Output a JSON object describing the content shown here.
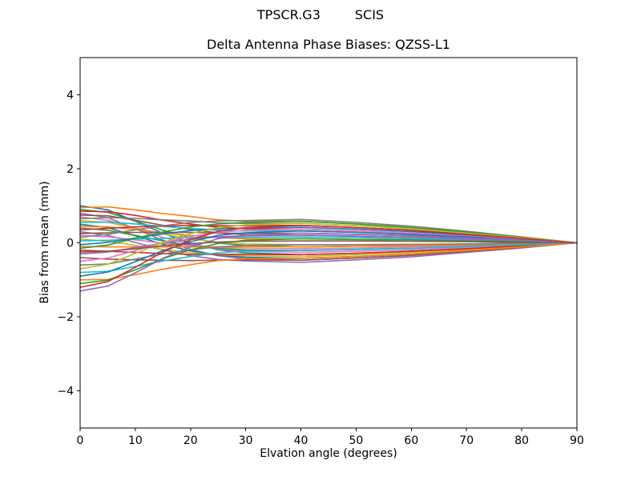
{
  "colors": {
    "background": "#ffffff",
    "text": "#000000",
    "axis": "#000000"
  },
  "chart_data": {
    "type": "line",
    "suptitle_left": "TPSCR.G3",
    "suptitle_right": "SCIS",
    "title": "Delta Antenna Phase Biases: QZSS-L1",
    "xlabel": "Elvation angle (degrees)",
    "ylabel": "Bias from mean (mm)",
    "xlim": [
      0,
      90
    ],
    "ylim": [
      -5,
      5
    ],
    "xticks": [
      0,
      10,
      20,
      30,
      40,
      50,
      60,
      70,
      80,
      90
    ],
    "yticks": [
      -4,
      -2,
      0,
      2,
      4
    ],
    "grid": false,
    "legend": false,
    "palette": [
      "#1f77b4",
      "#ff7f0e",
      "#2ca02c",
      "#d62728",
      "#9467bd",
      "#8c564b",
      "#e377c2",
      "#7f7f7f",
      "#bcbd22",
      "#17becf"
    ],
    "x": [
      0,
      5,
      10,
      15,
      20,
      25,
      30,
      40,
      50,
      60,
      70,
      80,
      90
    ],
    "series": [
      {
        "values": [
          1.0,
          0.89,
          0.58,
          0.26,
          -0.01,
          -0.19,
          -0.27,
          -0.32,
          -0.28,
          -0.23,
          -0.16,
          -0.08,
          0.0
        ]
      },
      {
        "values": [
          0.95,
          0.97,
          0.89,
          0.79,
          0.71,
          0.62,
          0.58,
          0.58,
          0.51,
          0.41,
          0.29,
          0.15,
          0.0
        ]
      },
      {
        "values": [
          0.9,
          0.82,
          0.59,
          0.34,
          0.14,
          -0.01,
          -0.07,
          -0.11,
          -0.09,
          -0.08,
          -0.05,
          -0.03,
          0.0
        ]
      },
      {
        "values": [
          0.85,
          0.84,
          0.74,
          0.61,
          0.51,
          0.42,
          0.38,
          0.37,
          0.32,
          0.26,
          0.18,
          0.09,
          0.0
        ]
      },
      {
        "values": [
          0.8,
          0.68,
          0.38,
          0.07,
          -0.18,
          -0.35,
          -0.43,
          -0.47,
          -0.41,
          -0.34,
          -0.23,
          -0.12,
          0.0
        ]
      },
      {
        "values": [
          0.75,
          0.73,
          0.61,
          0.47,
          0.36,
          0.27,
          0.22,
          0.21,
          0.18,
          0.15,
          0.1,
          0.05,
          0.0
        ]
      },
      {
        "values": [
          0.7,
          0.61,
          0.39,
          0.15,
          -0.04,
          -0.17,
          -0.23,
          -0.26,
          -0.23,
          -0.19,
          -0.13,
          -0.07,
          0.0
        ]
      },
      {
        "values": [
          0.65,
          0.68,
          0.66,
          0.62,
          0.59,
          0.54,
          0.52,
          0.53,
          0.46,
          0.38,
          0.26,
          0.14,
          0.0
        ]
      },
      {
        "values": [
          0.6,
          0.55,
          0.4,
          0.24,
          0.11,
          0.01,
          -0.03,
          -0.05,
          -0.05,
          -0.04,
          -0.03,
          -0.01,
          0.0
        ]
      },
      {
        "values": [
          0.55,
          0.56,
          0.51,
          0.44,
          0.39,
          0.34,
          0.32,
          0.32,
          0.28,
          0.23,
          0.16,
          0.08,
          0.0
        ]
      },
      {
        "values": [
          0.5,
          0.41,
          0.19,
          -0.04,
          -0.22,
          -0.33,
          -0.39,
          -0.42,
          -0.37,
          -0.3,
          -0.21,
          -0.11,
          0.0
        ]
      },
      {
        "values": [
          0.45,
          0.43,
          0.36,
          0.27,
          0.2,
          0.14,
          0.11,
          0.11,
          0.09,
          0.08,
          0.05,
          0.03,
          0.0
        ]
      },
      {
        "values": [
          0.4,
          0.34,
          0.2,
          0.05,
          -0.07,
          -0.15,
          -0.19,
          -0.21,
          -0.18,
          -0.15,
          -0.1,
          -0.05,
          0.0
        ]
      },
      {
        "values": [
          0.35,
          0.39,
          0.43,
          0.45,
          0.47,
          0.46,
          0.46,
          0.47,
          0.41,
          0.34,
          0.23,
          0.12,
          0.0
        ]
      },
      {
        "values": [
          0.3,
          0.2,
          0.01,
          -0.19,
          -0.35,
          -0.45,
          -0.49,
          -0.53,
          -0.46,
          -0.38,
          -0.26,
          -0.14,
          0.0
        ]
      },
      {
        "values": [
          0.25,
          0.27,
          0.28,
          0.28,
          0.28,
          0.26,
          0.26,
          0.26,
          0.23,
          0.19,
          0.13,
          0.07,
          0.0
        ]
      },
      {
        "values": [
          0.2,
          0.16,
          0.08,
          -0.01,
          -0.08,
          -0.12,
          -0.14,
          -0.16,
          -0.14,
          -0.11,
          -0.08,
          -0.04,
          0.0
        ]
      },
      {
        "values": [
          0.15,
          0.23,
          0.35,
          0.46,
          0.55,
          0.59,
          0.6,
          0.63,
          0.55,
          0.45,
          0.31,
          0.16,
          0.0
        ]
      },
      {
        "values": [
          0.1,
          0.04,
          -0.07,
          -0.18,
          -0.27,
          -0.32,
          -0.35,
          -0.37,
          -0.32,
          -0.26,
          -0.18,
          -0.09,
          0.0
        ]
      },
      {
        "values": [
          0.05,
          0.07,
          0.1,
          0.12,
          0.14,
          0.15,
          0.15,
          0.16,
          0.14,
          0.11,
          0.08,
          0.04,
          0.0
        ]
      },
      {
        "values": [
          -0.05,
          0.01,
          0.13,
          0.24,
          0.33,
          0.38,
          0.4,
          0.42,
          0.37,
          0.3,
          0.21,
          0.11,
          0.0
        ]
      },
      {
        "values": [
          -0.1,
          -0.11,
          -0.11,
          -0.11,
          -0.11,
          -0.11,
          -0.1,
          -0.11,
          -0.09,
          -0.08,
          -0.05,
          -0.03,
          0.0
        ]
      },
      {
        "values": [
          -0.15,
          -0.06,
          0.12,
          0.29,
          0.43,
          0.51,
          0.55,
          0.58,
          0.51,
          0.41,
          0.29,
          0.15,
          0.0
        ]
      },
      {
        "values": [
          -0.2,
          -0.23,
          -0.26,
          -0.29,
          -0.31,
          -0.31,
          -0.31,
          -0.32,
          -0.28,
          -0.23,
          -0.16,
          -0.08,
          0.0
        ]
      },
      {
        "values": [
          -0.3,
          -0.25,
          -0.13,
          -0.01,
          0.1,
          0.16,
          0.19,
          0.21,
          0.18,
          0.15,
          0.1,
          0.05,
          0.0
        ]
      },
      {
        "values": [
          -0.4,
          -0.44,
          -0.46,
          -0.47,
          -0.48,
          -0.47,
          -0.46,
          -0.47,
          -0.41,
          -0.34,
          -0.23,
          -0.12,
          0.0
        ]
      },
      {
        "values": [
          -0.5,
          -0.41,
          -0.21,
          0.0,
          0.17,
          0.28,
          0.34,
          0.37,
          0.32,
          0.26,
          0.18,
          0.09,
          0.0
        ]
      },
      {
        "values": [
          -0.6,
          -0.57,
          -0.44,
          -0.3,
          -0.19,
          -0.11,
          -0.07,
          -0.05,
          -0.05,
          -0.04,
          -0.03,
          -0.01,
          0.0
        ]
      },
      {
        "values": [
          -0.7,
          -0.58,
          -0.29,
          0.01,
          0.25,
          0.41,
          0.48,
          0.53,
          0.46,
          0.38,
          0.26,
          0.14,
          0.0
        ]
      },
      {
        "values": [
          -0.8,
          -0.77,
          -0.64,
          -0.49,
          -0.37,
          -0.27,
          -0.22,
          -0.21,
          -0.18,
          -0.15,
          -0.1,
          -0.05,
          0.0
        ]
      },
      {
        "values": [
          -0.9,
          -0.79,
          -0.51,
          -0.21,
          0.03,
          0.2,
          0.27,
          0.32,
          0.28,
          0.23,
          0.16,
          0.08,
          0.0
        ]
      },
      {
        "values": [
          -1.0,
          -0.99,
          -0.86,
          -0.71,
          -0.59,
          -0.48,
          -0.43,
          -0.42,
          -0.37,
          -0.3,
          -0.21,
          -0.11,
          0.0
        ]
      },
      {
        "values": [
          -1.1,
          -1.01,
          -0.73,
          -0.43,
          -0.19,
          -0.02,
          0.07,
          0.11,
          0.09,
          0.08,
          0.05,
          0.03,
          0.0
        ]
      },
      {
        "values": [
          -1.2,
          -1.05,
          -0.66,
          -0.25,
          0.08,
          0.31,
          0.41,
          0.47,
          0.41,
          0.34,
          0.23,
          0.12,
          0.0
        ]
      },
      {
        "values": [
          -1.3,
          -1.17,
          -0.81,
          -0.42,
          -0.11,
          0.11,
          0.21,
          0.26,
          0.23,
          0.19,
          0.13,
          0.07,
          0.0
        ]
      },
      {
        "values": [
          -0.25,
          -0.23,
          -0.16,
          -0.08,
          -0.02,
          0.02,
          0.04,
          0.05,
          0.05,
          0.04,
          0.03,
          0.01,
          0.0
        ]
      }
    ]
  }
}
